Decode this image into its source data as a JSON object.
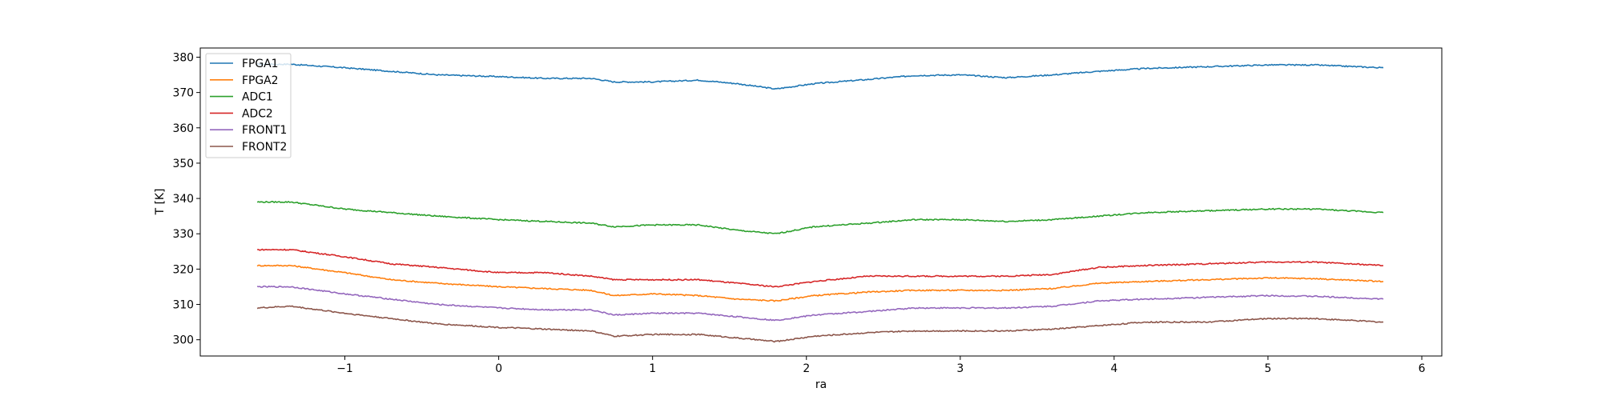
{
  "chart_data": {
    "type": "line",
    "title": "",
    "xlabel": "ra",
    "ylabel": "T [K]",
    "xlim": [
      -1.94,
      6.13
    ],
    "ylim": [
      295.4,
      382.6
    ],
    "xticks": [
      -1,
      0,
      1,
      2,
      3,
      4,
      5,
      6
    ],
    "xtick_labels": [
      "−1",
      "0",
      "1",
      "2",
      "3",
      "4",
      "5",
      "6"
    ],
    "yticks": [
      300,
      310,
      320,
      330,
      340,
      350,
      360,
      370,
      380
    ],
    "ytick_labels": [
      "300",
      "310",
      "320",
      "330",
      "340",
      "350",
      "360",
      "370",
      "380"
    ],
    "grid": false,
    "legend_position": "top-left",
    "x": [
      -1.57,
      -1.35,
      -1.0,
      -0.7,
      -0.4,
      0,
      0.3,
      0.6,
      0.75,
      1.0,
      1.3,
      1.55,
      1.8,
      2.05,
      2.4,
      2.7,
      3.0,
      3.3,
      3.6,
      3.9,
      4.2,
      4.6,
      5.0,
      5.3,
      5.75
    ],
    "series": [
      {
        "name": "FPGA1",
        "color": "#1f77b4",
        "values": [
          378,
          378,
          377,
          376,
          375,
          374.5,
          374,
          374,
          373,
          373,
          373.5,
          372.5,
          371,
          372.5,
          373.7,
          374.8,
          375,
          374.2,
          375,
          376,
          376.8,
          377.3,
          377.8,
          377.8,
          377
        ]
      },
      {
        "name": "FPGA2",
        "color": "#ff7f0e",
        "values": [
          321,
          321,
          319,
          317,
          316,
          315,
          314.5,
          314,
          312.5,
          313,
          312.5,
          311.5,
          311,
          312.5,
          313.5,
          314,
          314,
          314,
          314.5,
          316,
          316.5,
          317,
          317.5,
          317.3,
          316.5
        ]
      },
      {
        "name": "ADC1",
        "color": "#2ca02c",
        "values": [
          339,
          339,
          337,
          336,
          335,
          334,
          333.5,
          333,
          332,
          332.5,
          332.5,
          331,
          330,
          332,
          333,
          334,
          334,
          333.5,
          334,
          335,
          336,
          336.5,
          337,
          337,
          336
        ]
      },
      {
        "name": "ADC2",
        "color": "#d62728",
        "values": [
          325.5,
          325.5,
          323.5,
          321.5,
          320.5,
          319,
          319,
          318,
          317,
          317,
          317,
          316,
          315,
          316.5,
          318,
          318,
          318,
          318,
          318.5,
          320.5,
          321,
          321.5,
          322,
          322,
          321
        ]
      },
      {
        "name": "FRONT1",
        "color": "#9467bd",
        "values": [
          315,
          315,
          313,
          311.5,
          310,
          309,
          308.5,
          308.5,
          307,
          307.5,
          307.5,
          306.5,
          305.5,
          307,
          308,
          309,
          309,
          309,
          309.5,
          311,
          311.5,
          312,
          312.5,
          312.3,
          311.5
        ]
      },
      {
        "name": "FRONT2",
        "color": "#8c564b",
        "values": [
          309,
          309.5,
          307.5,
          306,
          304.5,
          303.5,
          303,
          302.5,
          301,
          301.5,
          301.5,
          300.5,
          299.5,
          301,
          302,
          302.5,
          302.5,
          302.5,
          303,
          304,
          305,
          305,
          306,
          306,
          305
        ]
      }
    ]
  }
}
